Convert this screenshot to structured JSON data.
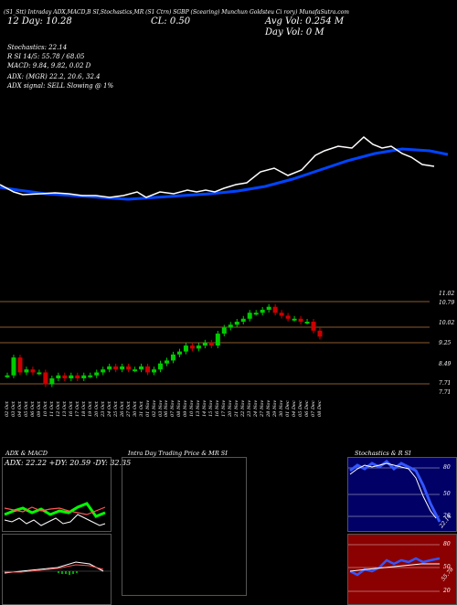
{
  "header": {
    "line1": "(S1_Stt) Intraday ADX,MACD,B   SI,Stochastics,MR   (S1 Ctrn) SGBP   (Scearing) Munchun  Goldsteu Ci   rory) MunafaSutra.com",
    "ema": "12 Day: 10.28",
    "close": "CL: 0.50",
    "avg_vol": "Avg Vol: 0.254   M",
    "day_vol": "Day Vol: 0   M",
    "stoch": "Stochastics: 22.14",
    "rsi": "R          SI 14/5: 55.78 / 68.05",
    "macd": "MACD: 9.84, 9.82, 0.02  D",
    "adx": "ADX:                          (MGR) 22.2,  20.6,  32.4",
    "adx_signal": "ADX  signal: SELL  Slowing @ 1%"
  },
  "price_axis": [
    "11.02",
    "10.79",
    "10.02",
    "9.25",
    "8.49",
    "7.71",
    "7.71"
  ],
  "dates": [
    "02 Oct",
    "03 Oct",
    "04 Oct",
    "05 Oct",
    "06 Oct",
    "09 Oct",
    "10 Oct",
    "11 Oct",
    "12 Oct",
    "13 Oct",
    "16 Oct",
    "17 Oct",
    "18 Oct",
    "19 Oct",
    "20 Oct",
    "23 Oct",
    "24 Oct",
    "25 Oct",
    "26 Oct",
    "27 Oct",
    "30 Oct",
    "31 Oct",
    "01 Nov",
    "02 Nov",
    "03 Nov",
    "06 Nov",
    "07 Nov",
    "08 Nov",
    "09 Nov",
    "10 Nov",
    "13 Nov",
    "14 Nov",
    "15 Nov",
    "16 Nov",
    "17 Nov",
    "20 Nov",
    "21 Nov",
    "22 Nov",
    "23 Nov",
    "24 Nov",
    "27 Nov",
    "28 Nov",
    "29 Nov",
    "30 Nov",
    "01 Dec",
    "04 Dec",
    "05 Dec",
    "06 Dec",
    "07 Dec",
    "08 Dec"
  ],
  "panels": {
    "adx_title": "ADX  & MACD",
    "adx_values": "ADX: 22.22  +DY: 20.59 -DY: 32.35",
    "intraday_title": "Intra  Day Trading Price  & MR                    SI",
    "stoch_title": "Stochastics & R              SI",
    "stoch_ticks": [
      "80",
      "50",
      "20"
    ],
    "stoch_value": "22.14",
    "rsi_ticks": [
      "80",
      "50",
      "20"
    ],
    "rsi_value": "55.78"
  },
  "colors": {
    "up": "#00cc00",
    "down": "#cc0000",
    "ema": "#0044ff",
    "stoch_bg": "#000066",
    "rsi_bg": "#8b0000"
  },
  "chart_data": {
    "type": "candlestick",
    "title": "",
    "ylabel": "",
    "ylim": [
      7.71,
      11.02
    ],
    "series": [
      {
        "values": [
          8.3,
          8.9,
          8.4,
          8.5,
          8.4,
          8.4,
          8.0,
          8.2,
          8.3,
          8.2,
          8.3,
          8.2,
          8.3,
          8.3,
          8.4,
          8.5,
          8.6,
          8.5,
          8.6,
          8.5,
          8.5,
          8.6,
          8.4,
          8.5,
          8.7,
          8.8,
          9.0,
          9.1,
          9.3,
          9.2,
          9.3,
          9.4,
          9.3,
          9.7,
          9.9,
          10.0,
          10.1,
          10.2,
          10.4,
          10.4,
          10.5,
          10.6,
          10.4,
          10.3,
          10.2,
          10.2,
          10.1,
          10.1,
          9.8,
          9.6
        ]
      }
    ]
  }
}
